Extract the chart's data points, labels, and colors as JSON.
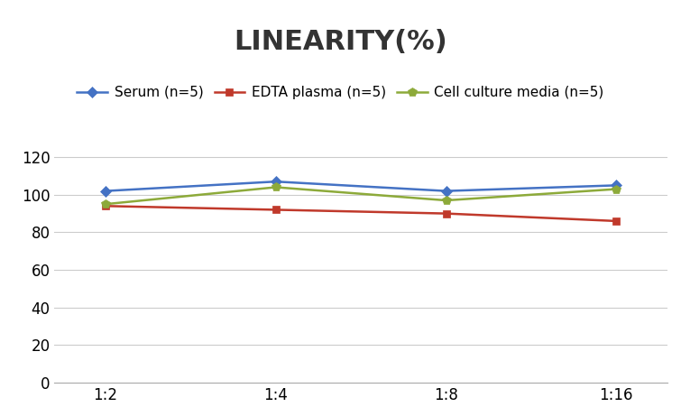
{
  "title": "LINEARITY(%)",
  "title_fontsize": 22,
  "title_fontweight": "bold",
  "x_labels": [
    "1:2",
    "1:4",
    "1:8",
    "1:16"
  ],
  "x_positions": [
    0,
    1,
    2,
    3
  ],
  "series": [
    {
      "label": "Serum (n=5)",
      "values": [
        102,
        107,
        102,
        105
      ],
      "color": "#4472C4",
      "marker": "D",
      "markersize": 6,
      "linewidth": 1.8
    },
    {
      "label": "EDTA plasma (n=5)",
      "values": [
        94,
        92,
        90,
        86
      ],
      "color": "#C0392B",
      "marker": "s",
      "markersize": 6,
      "linewidth": 1.8
    },
    {
      "label": "Cell culture media (n=5)",
      "values": [
        95,
        104,
        97,
        103
      ],
      "color": "#8DAA3A",
      "marker": "p",
      "markersize": 7,
      "linewidth": 1.8
    }
  ],
  "ylim": [
    0,
    130
  ],
  "yticks": [
    0,
    20,
    40,
    60,
    80,
    100,
    120
  ],
  "background_color": "#ffffff",
  "grid_color": "#cccccc",
  "legend_fontsize": 11,
  "tick_fontsize": 12
}
